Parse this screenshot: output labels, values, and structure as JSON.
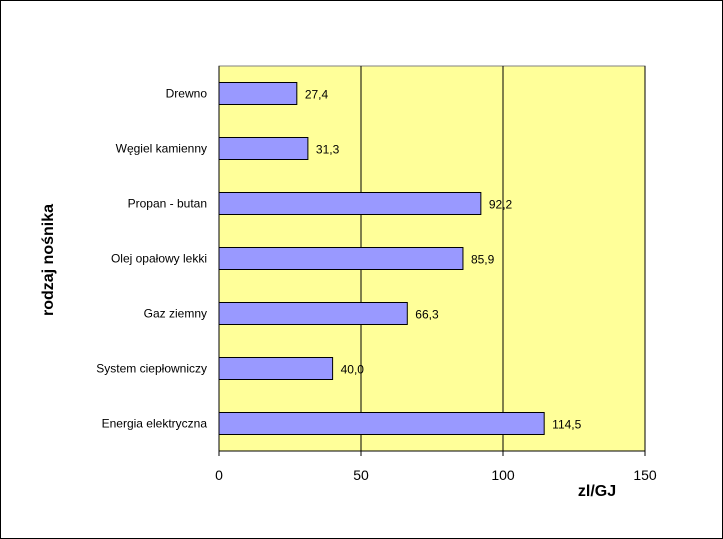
{
  "chart_data": {
    "type": "bar",
    "orientation": "horizontal",
    "categories": [
      "Drewno",
      "Węgiel kamienny",
      "Propan - butan",
      "Olej opałowy lekki",
      "Gaz ziemny",
      "System ciepłowniczy",
      "Energia elektryczna"
    ],
    "values": [
      27.4,
      31.3,
      92.2,
      85.9,
      66.3,
      40.0,
      114.5
    ],
    "value_labels": [
      "27,4",
      "31,3",
      "92,2",
      "85,9",
      "66,3",
      "40,0",
      "114,5"
    ],
    "xlabel": "zl/GJ",
    "ylabel": "rodzaj nośnika",
    "xlim": [
      0,
      150
    ],
    "xticks": [
      0,
      50,
      100,
      150
    ],
    "xtick_labels": [
      "0",
      "50",
      "100",
      "150"
    ],
    "grid": "vertical",
    "legend": "none",
    "colors": {
      "plot_background": "#FFFF99",
      "bar_fill": "#9999FF",
      "bar_stroke": "#000000",
      "gridline": "#000000"
    }
  }
}
